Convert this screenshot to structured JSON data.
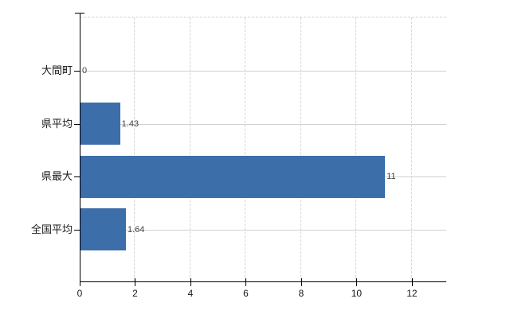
{
  "chart_data": {
    "type": "bar",
    "orientation": "horizontal",
    "title": "",
    "xlabel": "",
    "ylabel": "",
    "categories": [
      "大間町",
      "県平均",
      "県最大",
      "全国平均"
    ],
    "values": [
      0,
      1.43,
      11,
      1.64
    ],
    "value_labels": [
      "0",
      "1.43",
      "11",
      "1.64"
    ],
    "x_ticks": [
      0,
      2,
      4,
      6,
      8,
      10,
      12
    ],
    "x_tick_labels": [
      "0",
      "2",
      "4",
      "6",
      "8",
      "10",
      "12"
    ],
    "xlim": [
      0,
      13.24
    ],
    "grid": true,
    "legend": "none",
    "bar_color": "#3c6eaa"
  },
  "colors": {
    "background": "#ffffff",
    "bar": "#3c6eaa",
    "axis": "#000000",
    "gridline_horizontal": "#ccd4cc",
    "gridline_vertical": "#d8d2d8",
    "plot_top_border": "#d8d2d8",
    "category_text": "#1a1a1a",
    "value_text": "#444444",
    "tick_text": "#1a1a1a"
  }
}
